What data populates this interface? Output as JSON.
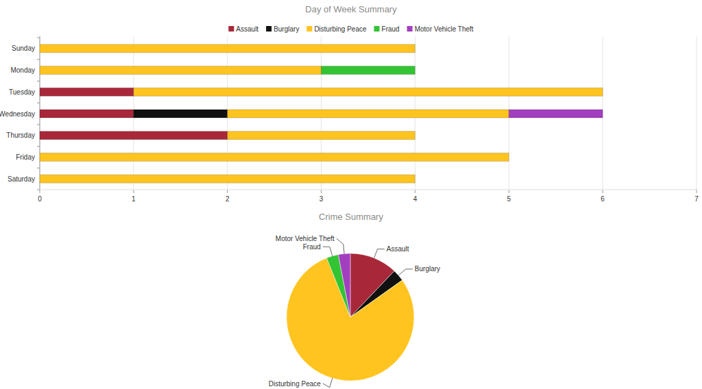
{
  "chart_data": [
    {
      "type": "bar",
      "title": "Day of Week Summary",
      "orientation": "horizontal",
      "stacked": true,
      "categories": [
        "Sunday",
        "Monday",
        "Tuesday",
        "Wednesday",
        "Thursday",
        "Friday",
        "Saturday"
      ],
      "series": [
        {
          "name": "Assault",
          "color": "#a8283a",
          "values": [
            0,
            0,
            1,
            1,
            2,
            0,
            0
          ]
        },
        {
          "name": "Burglary",
          "color": "#111111",
          "values": [
            0,
            0,
            0,
            1,
            0,
            0,
            0
          ]
        },
        {
          "name": "Disturbing Peace",
          "color": "#ffc41f",
          "values": [
            4,
            3,
            5,
            3,
            2,
            5,
            4
          ]
        },
        {
          "name": "Fraud",
          "color": "#33c433",
          "values": [
            0,
            1,
            0,
            0,
            0,
            0,
            0
          ]
        },
        {
          "name": "Motor Vehicle Theft",
          "color": "#a23fbf",
          "values": [
            0,
            0,
            0,
            1,
            0,
            0,
            0
          ]
        }
      ],
      "xlim": [
        0,
        7
      ],
      "xticks": [
        0,
        1,
        2,
        3,
        4,
        5,
        6,
        7
      ],
      "grid": true,
      "legend": "top"
    },
    {
      "type": "pie",
      "title": "Crime Summary",
      "categories": [
        "Assault",
        "Burglary",
        "Disturbing Peace",
        "Fraud",
        "Motor Vehicle Theft"
      ],
      "values": [
        4,
        1,
        26,
        1,
        1
      ],
      "colors": [
        "#a8283a",
        "#111111",
        "#ffc41f",
        "#33c433",
        "#a23fbf"
      ]
    }
  ]
}
